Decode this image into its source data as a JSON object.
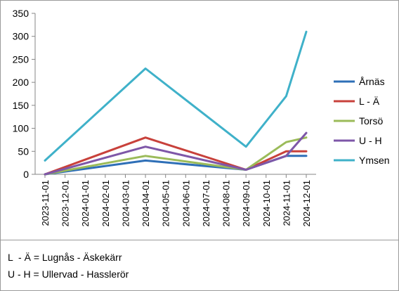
{
  "chart_data": {
    "type": "line",
    "x": [
      "2023-11-01",
      "2023-12-01",
      "2024-01-01",
      "2024-02-01",
      "2024-03-01",
      "2024-04-01",
      "2024-05-01",
      "2024-06-01",
      "2024-07-01",
      "2024-08-01",
      "2024-09-01",
      "2024-10-01",
      "2024-11-01",
      "2024-12-01"
    ],
    "ylim": [
      0,
      350
    ],
    "yticks": [
      "0",
      "50",
      "100",
      "150",
      "200",
      "250",
      "300",
      "350"
    ],
    "grid": false,
    "legend_position": "right",
    "series": [
      {
        "name": "Årnäs",
        "color": "#2e6fb7",
        "points": [
          [
            0,
            0
          ],
          [
            5,
            30
          ],
          [
            10,
            10
          ],
          [
            12,
            40
          ],
          [
            13,
            40
          ]
        ]
      },
      {
        "name": "L - Ä",
        "color": "#c8413b",
        "points": [
          [
            0,
            0
          ],
          [
            5,
            80
          ],
          [
            10,
            10
          ],
          [
            12,
            50
          ],
          [
            13,
            50
          ]
        ]
      },
      {
        "name": "Torsö",
        "color": "#9bbb59",
        "points": [
          [
            0,
            0
          ],
          [
            5,
            40
          ],
          [
            10,
            10
          ],
          [
            12,
            70
          ],
          [
            13,
            80
          ]
        ]
      },
      {
        "name": "U - H",
        "color": "#7e57a8",
        "points": [
          [
            0,
            0
          ],
          [
            5,
            60
          ],
          [
            10,
            10
          ],
          [
            12,
            40
          ],
          [
            13,
            90
          ]
        ]
      },
      {
        "name": "Ymsen",
        "color": "#3fb1c9",
        "points": [
          [
            0,
            30
          ],
          [
            5,
            230
          ],
          [
            10,
            60
          ],
          [
            12,
            170
          ],
          [
            13,
            310
          ]
        ]
      }
    ]
  },
  "notes": [
    "L  - Ä = Lugnås - Äskekärr",
    "U - H = Ullervad - Hasslerör"
  ]
}
